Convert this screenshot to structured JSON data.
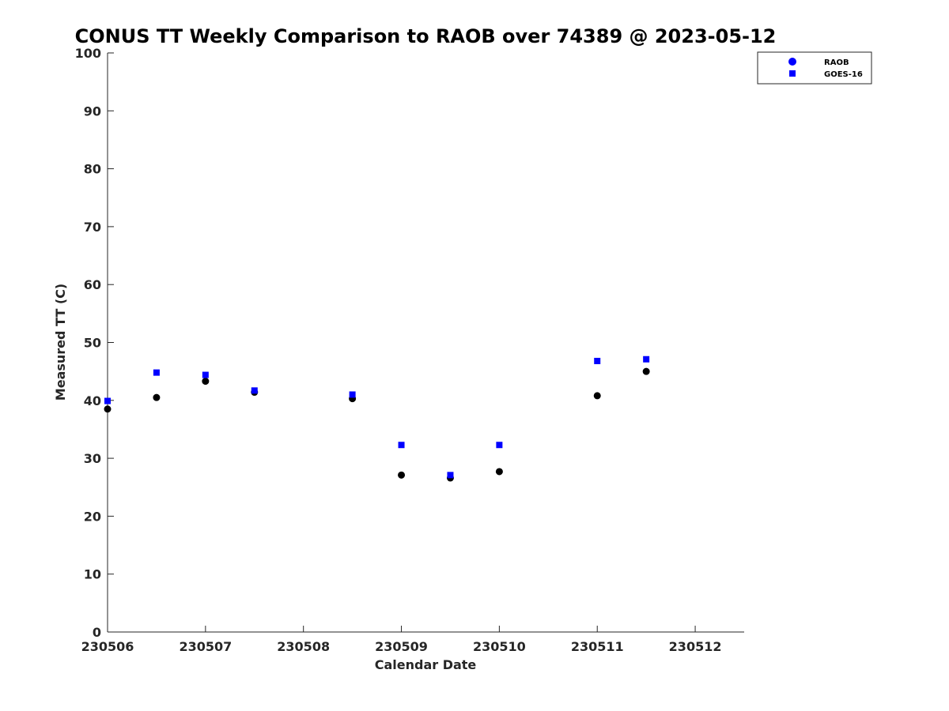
{
  "chart_data": {
    "type": "scatter",
    "title": "CONUS TT Weekly Comparison to RAOB over 74389 @ 2023-05-12",
    "xlabel": "Calendar Date",
    "ylabel": "Measured TT (C)",
    "xlim": [
      "230506",
      "230512.5"
    ],
    "ylim": [
      0,
      100
    ],
    "x_ticks": [
      "230506",
      "230507",
      "230508",
      "230509",
      "230510",
      "230511",
      "230512"
    ],
    "y_ticks": [
      0,
      10,
      20,
      30,
      40,
      50,
      60,
      70,
      80,
      90,
      100
    ],
    "grid": false,
    "legend_position": "top-right",
    "legend": [
      "RAOB",
      "GOES-16"
    ],
    "series": [
      {
        "name": "RAOB",
        "marker": "circle",
        "color": "#000000",
        "legend_color": "#0000ff",
        "x": [
          230506.0,
          230506.5,
          230507.0,
          230507.5,
          230508.5,
          230509.0,
          230509.5,
          230510.0,
          230511.0,
          230511.5
        ],
        "y": [
          38.5,
          40.5,
          43.3,
          41.4,
          40.3,
          27.1,
          26.6,
          27.7,
          40.8,
          45.0
        ]
      },
      {
        "name": "GOES-16",
        "marker": "square",
        "color": "#0000ff",
        "legend_color": "#0000ff",
        "x": [
          230506.0,
          230506.5,
          230507.0,
          230507.5,
          230508.5,
          230509.0,
          230509.5,
          230510.0,
          230511.0,
          230511.5
        ],
        "y": [
          39.9,
          44.8,
          44.4,
          41.7,
          41.0,
          32.3,
          27.1,
          32.3,
          46.8,
          47.1
        ]
      }
    ]
  }
}
